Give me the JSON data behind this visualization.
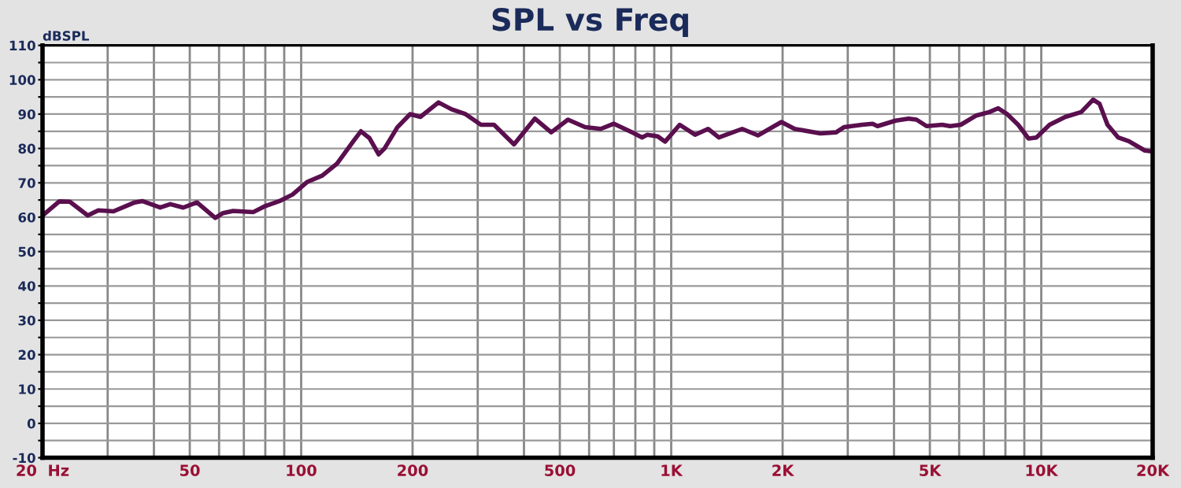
{
  "chart_data": {
    "type": "line",
    "title": "SPL vs Freq",
    "ylabel": "dBSPL",
    "xlim": [
      20,
      20000
    ],
    "ylim": [
      -10,
      110
    ],
    "xticks": [
      {
        "value": 20,
        "label": "20  Hz"
      },
      {
        "value": 30,
        "label": null
      },
      {
        "value": 40,
        "label": null
      },
      50,
      {
        "value": 60,
        "label": null
      },
      {
        "value": 70,
        "label": null
      },
      {
        "value": 80,
        "label": null
      },
      {
        "value": 90,
        "label": null
      },
      100,
      200,
      {
        "value": 300,
        "label": null
      },
      {
        "value": 400,
        "label": null
      },
      500,
      {
        "value": 600,
        "label": null
      },
      {
        "value": 700,
        "label": null
      },
      {
        "value": 800,
        "label": null
      },
      {
        "value": 900,
        "label": null
      },
      {
        "value": 1000,
        "label": "1K"
      },
      {
        "value": 2000,
        "label": "2K"
      },
      {
        "value": 3000,
        "label": null
      },
      {
        "value": 4000,
        "label": null
      },
      {
        "value": 5000,
        "label": "5K"
      },
      {
        "value": 6000,
        "label": null
      },
      {
        "value": 7000,
        "label": null
      },
      {
        "value": 8000,
        "label": null
      },
      {
        "value": 9000,
        "label": null
      },
      {
        "value": 10000,
        "label": "10K"
      },
      {
        "value": 20000,
        "label": "20K"
      }
    ],
    "yticks": [
      -10,
      {
        "value": -5,
        "label": null
      },
      0,
      {
        "value": 5,
        "label": null
      },
      10,
      {
        "value": 15,
        "label": null
      },
      20,
      {
        "value": 25,
        "label": null
      },
      30,
      {
        "value": 35,
        "label": null
      },
      40,
      {
        "value": 45,
        "label": null
      },
      50,
      {
        "value": 55,
        "label": null
      },
      60,
      {
        "value": 65,
        "label": null
      },
      70,
      {
        "value": 75,
        "label": null
      },
      80,
      {
        "value": 85,
        "label": null
      },
      90,
      {
        "value": 95,
        "label": null
      },
      100,
      {
        "value": 105,
        "label": null
      },
      110
    ],
    "log": "x",
    "grid": true,
    "line_style": "solid",
    "series": [
      {
        "color": "#5a0f4e",
        "x": [
          20,
          22.2,
          23.7,
          26.5,
          28.3,
          31.1,
          35.5,
          37.2,
          41.6,
          44.3,
          48,
          52.3,
          58.6,
          61.5,
          65.5,
          74.3,
          79.4,
          87.4,
          94.8,
          104,
          114,
          125,
          139,
          145,
          153,
          162,
          168,
          182,
          197,
          210,
          235,
          255,
          277,
          306,
          332,
          376,
          428,
          474,
          526,
          585,
          645,
          700,
          783,
          835,
          862,
          920,
          963,
          1054,
          1160,
          1258,
          1345,
          1555,
          1715,
          1985,
          2155,
          2530,
          2790,
          2930,
          3280,
          3500,
          3610,
          4040,
          4380,
          4600,
          4900,
          5400,
          5670,
          6060,
          6680,
          7240,
          7650,
          8110,
          8660,
          9240,
          9700,
          10530,
          11620,
          12820,
          13810,
          14370,
          15100,
          16140,
          17240,
          19050,
          20000
        ],
        "values": [
          60.5,
          64.6,
          64.5,
          60.5,
          62,
          61.7,
          64.3,
          64.7,
          62.8,
          63.8,
          62.8,
          64.3,
          59.8,
          61.2,
          61.8,
          61.5,
          63.1,
          64.7,
          66.6,
          70.3,
          72.1,
          75.6,
          82.4,
          85,
          83,
          78.3,
          80,
          86.2,
          90,
          89.2,
          93.4,
          91.4,
          90.1,
          86.9,
          86.9,
          81.2,
          88.7,
          84.7,
          88.4,
          86.2,
          85.7,
          87.2,
          84.7,
          83.2,
          84,
          83.5,
          82,
          86.9,
          84,
          85.7,
          83.2,
          85.7,
          83.8,
          87.7,
          85.7,
          84.4,
          84.7,
          86.2,
          86.9,
          87.2,
          86.5,
          88.1,
          88.7,
          88.4,
          86.5,
          86.9,
          86.5,
          86.9,
          89.6,
          90.6,
          91.7,
          89.9,
          86.9,
          82.9,
          83.2,
          86.9,
          89.2,
          90.6,
          94.2,
          93,
          86.9,
          83.2,
          82.1,
          79.4,
          79.1
        ]
      }
    ]
  }
}
